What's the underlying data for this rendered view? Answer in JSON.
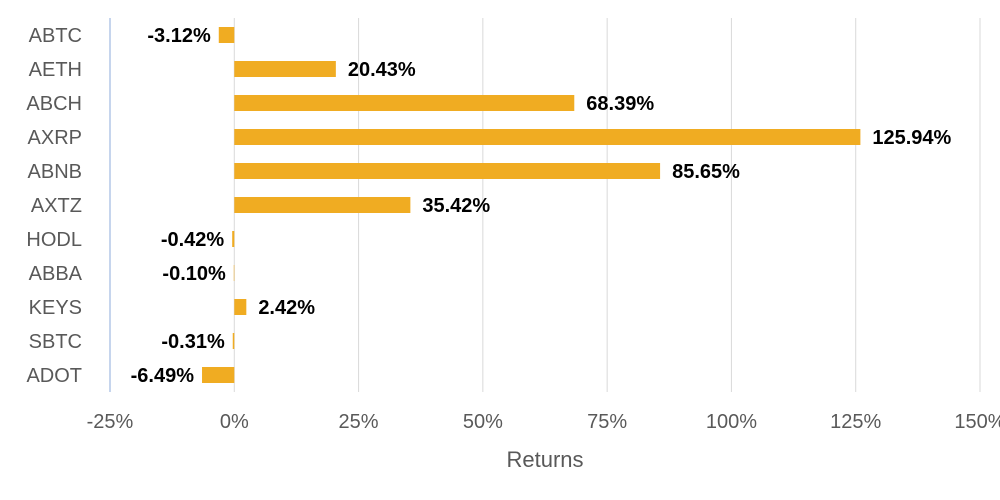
{
  "chart_data": {
    "type": "bar",
    "orientation": "horizontal",
    "categories": [
      "ABTC",
      "AETH",
      "ABCH",
      "AXRP",
      "ABNB",
      "AXTZ",
      "HODL",
      "ABBA",
      "KEYS",
      "SBTC",
      "ADOT"
    ],
    "values": [
      -3.12,
      20.43,
      68.39,
      125.94,
      85.65,
      35.42,
      -0.42,
      -0.1,
      2.42,
      -0.31,
      -6.49
    ],
    "value_labels": [
      "-3.12%",
      "20.43%",
      "68.39%",
      "125.94%",
      "85.65%",
      "35.42%",
      "-0.42%",
      "-0.10%",
      "2.42%",
      "-0.31%",
      "-6.49%"
    ],
    "xlabel": "Returns",
    "ylabel": "",
    "xlim": [
      -25,
      150
    ],
    "xticks": [
      -25,
      0,
      25,
      50,
      75,
      100,
      125,
      150
    ],
    "xtick_labels": [
      "-25%",
      "0%",
      "25%",
      "50%",
      "75%",
      "100%",
      "125%",
      "150%"
    ],
    "grid": "vertical",
    "legend": "none",
    "colors": {
      "bar": "#F0AC22",
      "grid": "#D9D9D9",
      "axis": "#B4C7E7"
    }
  }
}
